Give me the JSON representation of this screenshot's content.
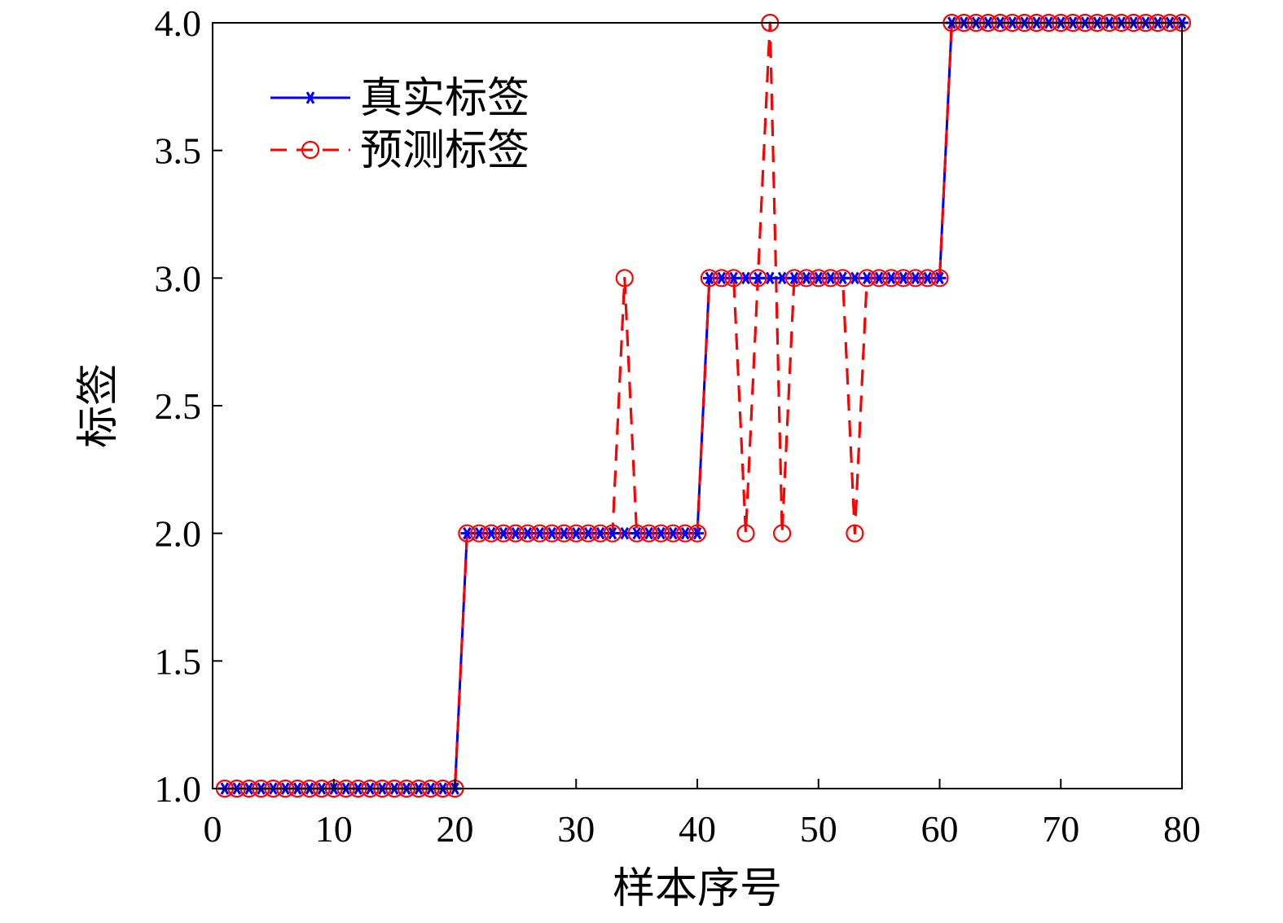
{
  "chart_data": {
    "type": "line",
    "xlabel": "样本序号",
    "ylabel": "标签",
    "xlim": [
      0,
      80
    ],
    "ylim": [
      1.0,
      4.0
    ],
    "x_ticks": [
      "0",
      "10",
      "20",
      "30",
      "40",
      "50",
      "60",
      "70",
      "80"
    ],
    "y_ticks": [
      "1.0",
      "1.5",
      "2.0",
      "2.5",
      "3.0",
      "3.5",
      "4.0"
    ],
    "grid": false,
    "legend_position": "top-left",
    "x": [
      1,
      2,
      3,
      4,
      5,
      6,
      7,
      8,
      9,
      10,
      11,
      12,
      13,
      14,
      15,
      16,
      17,
      18,
      19,
      20,
      21,
      22,
      23,
      24,
      25,
      26,
      27,
      28,
      29,
      30,
      31,
      32,
      33,
      34,
      35,
      36,
      37,
      38,
      39,
      40,
      41,
      42,
      43,
      44,
      45,
      46,
      47,
      48,
      49,
      50,
      51,
      52,
      53,
      54,
      55,
      56,
      57,
      58,
      59,
      60,
      61,
      62,
      63,
      64,
      65,
      66,
      67,
      68,
      69,
      70,
      71,
      72,
      73,
      74,
      75,
      76,
      77,
      78,
      79,
      80
    ],
    "series": [
      {
        "name": "真实标签",
        "color": "#0000ff",
        "line_style": "solid",
        "marker": "asterisk",
        "values": [
          1,
          1,
          1,
          1,
          1,
          1,
          1,
          1,
          1,
          1,
          1,
          1,
          1,
          1,
          1,
          1,
          1,
          1,
          1,
          1,
          2,
          2,
          2,
          2,
          2,
          2,
          2,
          2,
          2,
          2,
          2,
          2,
          2,
          2,
          2,
          2,
          2,
          2,
          2,
          2,
          3,
          3,
          3,
          3,
          3,
          3,
          3,
          3,
          3,
          3,
          3,
          3,
          3,
          3,
          3,
          3,
          3,
          3,
          3,
          3,
          4,
          4,
          4,
          4,
          4,
          4,
          4,
          4,
          4,
          4,
          4,
          4,
          4,
          4,
          4,
          4,
          4,
          4,
          4,
          4
        ]
      },
      {
        "name": "预测标签",
        "color": "#ff0000",
        "line_style": "dashed",
        "marker": "circle",
        "values": [
          1,
          1,
          1,
          1,
          1,
          1,
          1,
          1,
          1,
          1,
          1,
          1,
          1,
          1,
          1,
          1,
          1,
          1,
          1,
          1,
          2,
          2,
          2,
          2,
          2,
          2,
          2,
          2,
          2,
          2,
          2,
          2,
          2,
          3,
          2,
          2,
          2,
          2,
          2,
          2,
          3,
          3,
          3,
          2,
          3,
          4,
          2,
          3,
          3,
          3,
          3,
          3,
          2,
          3,
          3,
          3,
          3,
          3,
          3,
          3,
          4,
          4,
          4,
          4,
          4,
          4,
          4,
          4,
          4,
          4,
          4,
          4,
          4,
          4,
          4,
          4,
          4,
          4,
          4,
          4
        ]
      }
    ]
  }
}
